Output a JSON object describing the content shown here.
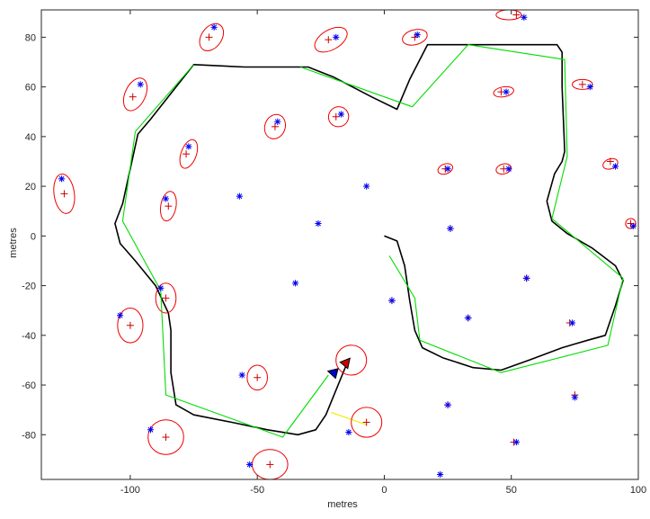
{
  "chart_data": {
    "type": "scatter",
    "title": "",
    "xlabel": "metres",
    "ylabel": "metres",
    "xlim": [
      -135,
      100
    ],
    "ylim": [
      -98,
      91
    ],
    "grid": false,
    "x_ticks": [
      -100,
      -50,
      0,
      50,
      100
    ],
    "y_ticks": [
      -80,
      -60,
      -40,
      -20,
      0,
      20,
      40,
      60,
      80
    ],
    "colors": {
      "true_path": "#000000",
      "waypoints": "#00dd00",
      "true_landmarks": "#0000ee",
      "estimates": "#cc0000",
      "ellipses": "#ee0000",
      "observation": "#eeee00",
      "vehicle_true": "#0000cc",
      "vehicle_est": "#cc0000"
    },
    "series": [
      {
        "name": "true-path",
        "style": "line",
        "points": [
          [
            0,
            0
          ],
          [
            5,
            -2
          ],
          [
            8,
            -12
          ],
          [
            10,
            -26
          ],
          [
            12,
            -38
          ],
          [
            15,
            -45
          ],
          [
            23,
            -49
          ],
          [
            35,
            -53
          ],
          [
            46,
            -54
          ],
          [
            57,
            -50
          ],
          [
            70,
            -45
          ],
          [
            80,
            -42
          ],
          [
            87,
            -40
          ],
          [
            88,
            -37
          ],
          [
            91,
            -28
          ],
          [
            94,
            -18
          ],
          [
            91,
            -12
          ],
          [
            82,
            -5
          ],
          [
            72,
            1
          ],
          [
            66,
            6
          ],
          [
            64,
            14
          ],
          [
            67,
            25
          ],
          [
            70,
            30
          ],
          [
            71,
            34
          ],
          [
            70,
            60
          ],
          [
            70,
            74
          ],
          [
            68,
            77
          ],
          [
            58,
            77
          ],
          [
            30,
            77
          ],
          [
            17,
            77
          ],
          [
            10,
            63
          ],
          [
            5,
            51
          ],
          [
            -5,
            56
          ],
          [
            -20,
            64
          ],
          [
            -30,
            68
          ],
          [
            -40,
            68
          ],
          [
            -55,
            68
          ],
          [
            -75,
            69
          ],
          [
            -92,
            47
          ],
          [
            -97,
            41
          ],
          [
            -103,
            13
          ],
          [
            -106,
            5
          ],
          [
            -104,
            -3
          ],
          [
            -98,
            -10
          ],
          [
            -90,
            -20
          ],
          [
            -85,
            -31
          ],
          [
            -84,
            -38
          ],
          [
            -84,
            -55
          ],
          [
            -82,
            -68
          ],
          [
            -75,
            -72
          ],
          [
            -60,
            -75
          ],
          [
            -46,
            -78
          ],
          [
            -34,
            -80
          ],
          [
            -27,
            -78
          ],
          [
            -23,
            -72
          ],
          [
            -19,
            -62
          ],
          [
            -15,
            -52
          ]
        ]
      },
      {
        "name": "waypoints",
        "style": "line",
        "points": [
          [
            -75,
            69
          ],
          [
            -98,
            42
          ],
          [
            -103,
            6
          ],
          [
            -88,
            -22
          ],
          [
            -86,
            -64
          ],
          [
            -40,
            -81
          ],
          [
            -22,
            -56
          ]
        ]
      },
      {
        "name": "waypoints-2",
        "style": "line",
        "points": [
          [
            -33,
            68
          ],
          [
            11,
            52
          ],
          [
            33,
            77
          ],
          [
            71,
            71
          ],
          [
            72,
            32
          ],
          [
            66,
            7
          ],
          [
            94,
            -17
          ],
          [
            88,
            -44
          ],
          [
            46,
            -55
          ],
          [
            14,
            -42
          ],
          [
            12,
            -25
          ],
          [
            2,
            -8
          ]
        ]
      },
      {
        "name": "observation",
        "style": "line",
        "points": [
          [
            -21,
            -71
          ],
          [
            -7,
            -76
          ]
        ]
      },
      {
        "name": "true-landmarks",
        "style": "star",
        "points": [
          [
            -127,
            23
          ],
          [
            -96,
            61
          ],
          [
            -86,
            15
          ],
          [
            -77,
            36
          ],
          [
            -67,
            84
          ],
          [
            -57,
            16
          ],
          [
            -56,
            -56
          ],
          [
            -53,
            -92
          ],
          [
            -42,
            46
          ],
          [
            -35,
            -19
          ],
          [
            -26,
            5
          ],
          [
            -19,
            80
          ],
          [
            -17,
            49
          ],
          [
            -14,
            -79
          ],
          [
            -7,
            20
          ],
          [
            3,
            -26
          ],
          [
            13,
            81
          ],
          [
            22,
            -96
          ],
          [
            25,
            27
          ],
          [
            26,
            3
          ],
          [
            25,
            -68
          ],
          [
            33,
            -33
          ],
          [
            48,
            58
          ],
          [
            49,
            27
          ],
          [
            52,
            -83
          ],
          [
            55,
            88
          ],
          [
            56,
            -17
          ],
          [
            74,
            -35
          ],
          [
            75,
            -65
          ],
          [
            81,
            60
          ],
          [
            91,
            28
          ],
          [
            98,
            4
          ],
          [
            -88,
            -21
          ],
          [
            -92,
            -78
          ],
          [
            -104,
            -32
          ]
        ]
      },
      {
        "name": "estimated-landmarks",
        "style": "cross",
        "points": [
          [
            -126,
            17
          ],
          [
            -99,
            56
          ],
          [
            -85,
            12
          ],
          [
            -78,
            33
          ],
          [
            -69,
            80
          ],
          [
            -50,
            -57
          ],
          [
            -45,
            -92
          ],
          [
            -43,
            44
          ],
          [
            -22,
            79
          ],
          [
            -19,
            48
          ],
          [
            -7,
            -75
          ],
          [
            3,
            -26
          ],
          [
            12,
            80
          ],
          [
            24,
            27
          ],
          [
            26,
            3
          ],
          [
            25,
            -68
          ],
          [
            33,
            -33
          ],
          [
            46,
            58
          ],
          [
            47,
            27
          ],
          [
            51,
            -83
          ],
          [
            52,
            89
          ],
          [
            56,
            -17
          ],
          [
            73,
            -35
          ],
          [
            75,
            -64
          ],
          [
            78,
            61
          ],
          [
            89,
            30
          ],
          [
            97,
            5
          ],
          [
            -86,
            -25
          ],
          [
            -86,
            -81
          ],
          [
            -100,
            -36
          ]
        ]
      },
      {
        "name": "uncertainty-ellipses",
        "style": "ellipse",
        "ellipses": [
          [
            -126,
            17,
            4,
            8,
            -8
          ],
          [
            -98,
            57,
            4,
            7,
            25
          ],
          [
            -85,
            12,
            3,
            6,
            10
          ],
          [
            -77,
            33,
            3,
            6,
            20
          ],
          [
            -68,
            80,
            4,
            6,
            35
          ],
          [
            -50,
            -57,
            4,
            5,
            0
          ],
          [
            -45,
            -92,
            7,
            6,
            0
          ],
          [
            -43,
            44,
            4,
            5,
            20
          ],
          [
            -21,
            79,
            7,
            4,
            -30
          ],
          [
            -18,
            48,
            4,
            4,
            -40
          ],
          [
            -13,
            -50,
            6,
            6,
            0
          ],
          [
            -7,
            -75,
            6,
            6,
            0
          ],
          [
            12,
            80,
            5,
            3,
            -15
          ],
          [
            24,
            27,
            3,
            2,
            -20
          ],
          [
            49,
            89,
            5,
            2,
            0
          ],
          [
            47,
            27,
            3,
            2,
            -15
          ],
          [
            47,
            58,
            4,
            2,
            -10
          ],
          [
            78,
            61,
            4,
            2,
            0
          ],
          [
            89,
            29,
            3,
            2,
            -20
          ],
          [
            97,
            5,
            2,
            2,
            -30
          ],
          [
            -86,
            -25,
            4,
            6,
            0
          ],
          [
            -86,
            -81,
            7,
            7,
            0
          ],
          [
            -100,
            -36,
            5,
            7,
            0
          ]
        ]
      },
      {
        "name": "vehicle",
        "style": "triangles",
        "true_pose": [
          -20,
          -55
        ],
        "est_pose": [
          -15,
          -51
        ]
      }
    ]
  }
}
